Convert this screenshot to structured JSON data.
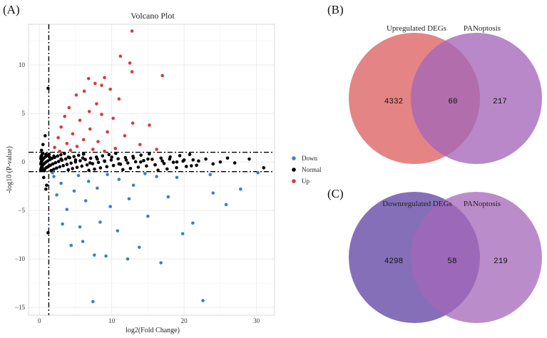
{
  "panels": {
    "a": "(A)",
    "b": "(B)",
    "c": "(C)"
  },
  "chart_data": [
    {
      "type": "scatter",
      "title": "Volcano Plot",
      "xlabel": "log2(Fold Change)",
      "ylabel": "-log10 (P-value)",
      "xlim": [
        -1.5,
        32.5
      ],
      "ylim": [
        -15.8,
        14.2
      ],
      "xticks": [
        0,
        10,
        20,
        30
      ],
      "yticks": [
        -15,
        -10,
        -5,
        0,
        5,
        10
      ],
      "thresholds": {
        "x": 1.3,
        "y_upper": 1.0,
        "y_lower": -1.0
      },
      "legend": [
        {
          "name": "Down",
          "color": "#3b82c4"
        },
        {
          "name": "Normal",
          "color": "#000000"
        },
        {
          "name": "Up",
          "color": "#d93a3a"
        }
      ],
      "series": [
        {
          "name": "Up",
          "color": "#d93a3a",
          "points": [
            [
              12.8,
              13.5
            ],
            [
              11.2,
              10.9
            ],
            [
              12.5,
              10.2
            ],
            [
              12.8,
              9.3
            ],
            [
              17.0,
              8.9
            ],
            [
              9.0,
              8.7
            ],
            [
              6.8,
              8.6
            ],
            [
              7.7,
              8.1
            ],
            [
              8.6,
              7.9
            ],
            [
              9.8,
              7.5
            ],
            [
              6.2,
              7.3
            ],
            [
              5.1,
              6.9
            ],
            [
              11.0,
              6.5
            ],
            [
              7.9,
              6.0
            ],
            [
              4.1,
              5.6
            ],
            [
              6.9,
              5.2
            ],
            [
              8.6,
              4.9
            ],
            [
              3.5,
              4.7
            ],
            [
              10.2,
              4.5
            ],
            [
              5.6,
              4.3
            ],
            [
              12.9,
              4.0
            ],
            [
              15.2,
              3.8
            ],
            [
              3.0,
              3.6
            ],
            [
              7.0,
              3.4
            ],
            [
              9.4,
              3.1
            ],
            [
              4.6,
              2.9
            ],
            [
              11.8,
              2.7
            ],
            [
              2.6,
              2.5
            ],
            [
              6.1,
              2.3
            ],
            [
              8.1,
              2.1
            ],
            [
              3.8,
              1.9
            ],
            [
              13.9,
              1.8
            ],
            [
              5.2,
              1.6
            ],
            [
              2.1,
              1.5
            ],
            [
              10.5,
              1.4
            ],
            [
              7.4,
              1.3
            ],
            [
              4.3,
              1.2
            ],
            [
              16.2,
              1.3
            ],
            [
              2.8,
              1.1
            ],
            [
              9.0,
              1.1
            ]
          ]
        },
        {
          "name": "Normal",
          "color": "#000000",
          "points": [
            [
              1.2,
              7.6
            ],
            [
              0.8,
              2.7
            ],
            [
              0.5,
              1.8
            ],
            [
              0.3,
              1.2
            ],
            [
              0.9,
              0.8
            ],
            [
              1.4,
              0.5
            ],
            [
              2.0,
              0.6
            ],
            [
              3.0,
              0.3
            ],
            [
              4.0,
              0.5
            ],
            [
              5.0,
              0.2
            ],
            [
              6.0,
              0.4
            ],
            [
              7.0,
              -0.1
            ],
            [
              8.0,
              0.3
            ],
            [
              9.0,
              0.1
            ],
            [
              10.0,
              0.5
            ],
            [
              11.0,
              -0.2
            ],
            [
              12.0,
              0.2
            ],
            [
              13.0,
              0.4
            ],
            [
              14.0,
              0.0
            ],
            [
              15.0,
              0.3
            ],
            [
              16.0,
              -0.3
            ],
            [
              17.0,
              0.1
            ],
            [
              18.0,
              0.3
            ],
            [
              19.0,
              0.0
            ],
            [
              20.0,
              0.2
            ],
            [
              21.0,
              -0.4
            ],
            [
              22.0,
              0.1
            ],
            [
              23.0,
              0.3
            ],
            [
              24.0,
              -0.2
            ],
            [
              25.0,
              0.0
            ],
            [
              26.0,
              0.4
            ],
            [
              27.0,
              -0.1
            ],
            [
              29.0,
              0.3
            ],
            [
              31.0,
              -0.6
            ],
            [
              0.4,
              -0.5
            ],
            [
              0.7,
              -0.9
            ],
            [
              0.6,
              -1.6
            ],
            [
              1.0,
              -2.4
            ],
            [
              0.9,
              -2.8
            ],
            [
              1.2,
              -7.3
            ]
          ]
        },
        {
          "name": "Down",
          "color": "#3b82c4",
          "points": [
            [
              7.4,
              -14.4
            ],
            [
              22.6,
              -14.3
            ],
            [
              12.2,
              -10.0
            ],
            [
              16.8,
              -10.4
            ],
            [
              7.6,
              -9.6
            ],
            [
              9.2,
              -9.7
            ],
            [
              4.4,
              -8.6
            ],
            [
              6.0,
              -8.2
            ],
            [
              13.8,
              -8.8
            ],
            [
              19.8,
              -7.4
            ],
            [
              10.8,
              -7.1
            ],
            [
              5.6,
              -6.7
            ],
            [
              3.2,
              -6.4
            ],
            [
              8.4,
              -6.2
            ],
            [
              21.2,
              -6.3
            ],
            [
              15.0,
              -5.6
            ],
            [
              3.8,
              -4.9
            ],
            [
              25.8,
              -4.4
            ],
            [
              9.8,
              -4.6
            ],
            [
              6.4,
              -4.0
            ],
            [
              12.4,
              -3.8
            ],
            [
              17.8,
              -3.6
            ],
            [
              2.4,
              -3.4
            ],
            [
              24.0,
              -3.2
            ],
            [
              4.8,
              -3.0
            ],
            [
              8.0,
              -2.7
            ],
            [
              13.0,
              -2.4
            ],
            [
              27.8,
              -2.8
            ],
            [
              3.0,
              -2.2
            ],
            [
              6.8,
              -2.0
            ],
            [
              11.0,
              -1.8
            ],
            [
              19.0,
              -1.6
            ],
            [
              2.0,
              -1.5
            ],
            [
              5.4,
              -1.4
            ],
            [
              9.4,
              -1.3
            ],
            [
              14.6,
              -1.2
            ],
            [
              23.6,
              -1.3
            ],
            [
              1.8,
              -1.1
            ],
            [
              30.2,
              -1.1
            ],
            [
              16.2,
              -1.5
            ]
          ]
        }
      ]
    },
    {
      "type": "venn",
      "sets": [
        {
          "label": "Upregulated DEGs",
          "color": "#e06f6f"
        },
        {
          "label": "PANoptosis",
          "color": "#a466b8"
        }
      ],
      "only_a": 4332,
      "intersection": 60,
      "only_b": 217
    },
    {
      "type": "venn",
      "sets": [
        {
          "label": "Downregulated DEGs",
          "color": "#6a4fa8"
        },
        {
          "label": "PANoptosis",
          "color": "#a466b8"
        }
      ],
      "only_a": 4298,
      "intersection": 58,
      "only_b": 219
    }
  ]
}
